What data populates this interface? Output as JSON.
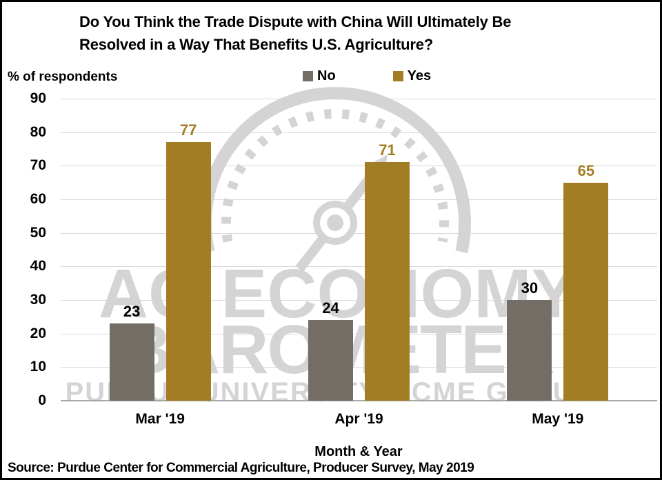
{
  "title": {
    "line1": "Do You Think the Trade Dispute with China Will Ultimately Be",
    "line2": "Resolved in a Way That Benefits U.S. Agriculture?"
  },
  "y_axis_label": "% of respondents",
  "x_axis_title": "Month & Year",
  "source_note": "Source: Purdue Center for Commercial Agriculture, Producer Survey, May 2019",
  "watermark": {
    "line1": "AG ECONOMY",
    "line2": "BAROMETER",
    "bottom_left": "PURDUE UNIVERSITY",
    "bottom_right": "CME GROUP",
    "color": "#D4D4D4"
  },
  "colors": {
    "no_bar": "#736D66",
    "yes_bar": "#A37D24",
    "gridline": "#D9D9D9",
    "axis_line": "#A8A8A8",
    "text": "#000000"
  },
  "chart_data": {
    "type": "bar",
    "title": "Do You Think the Trade Dispute with China Will Ultimately Be Resolved in a Way That Benefits U.S. Agriculture?",
    "categories": [
      "Mar '19",
      "Apr '19",
      "May '19"
    ],
    "series": [
      {
        "name": "No",
        "color": "#736D66",
        "values": [
          23,
          24,
          30
        ],
        "value_label_color": "#000000"
      },
      {
        "name": "Yes",
        "color": "#A37D24",
        "values": [
          77,
          71,
          65
        ],
        "value_label_color": "#A37D24"
      }
    ],
    "xlabel": "Month & Year",
    "ylabel": "% of respondents",
    "ylim": [
      0,
      90
    ],
    "ytick_step": 10,
    "grid": true,
    "legend_position": "top",
    "value_labels": true
  }
}
